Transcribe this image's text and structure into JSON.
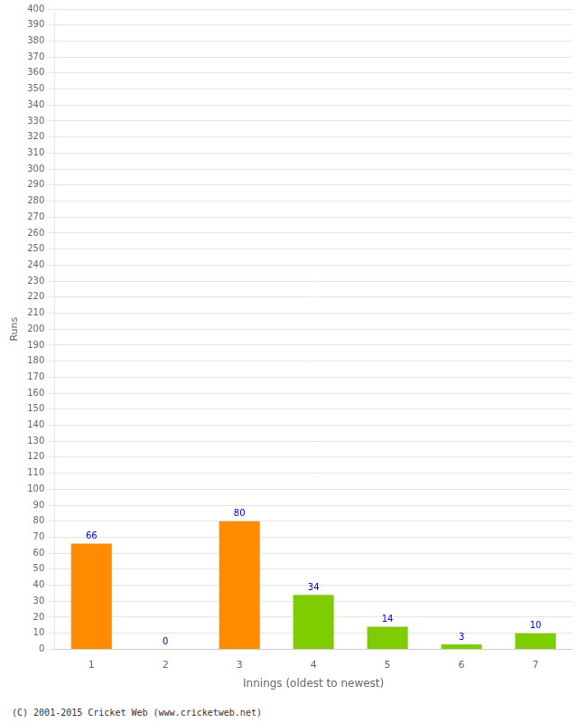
{
  "chart_data": {
    "type": "bar",
    "categories": [
      "1",
      "2",
      "3",
      "4",
      "5",
      "6",
      "7"
    ],
    "values": [
      66,
      0,
      80,
      34,
      14,
      3,
      10
    ],
    "colors": [
      "#FF8C00",
      "#FF8C00",
      "#FF8C00",
      "#7FCC00",
      "#7FCC00",
      "#7FCC00",
      "#7FCC00"
    ],
    "xlabel": "Innings (oldest to newest)",
    "ylabel": "Runs",
    "ylim": [
      0,
      400
    ],
    "yticks": [
      0,
      10,
      20,
      30,
      40,
      50,
      60,
      70,
      80,
      90,
      100,
      110,
      120,
      130,
      140,
      150,
      160,
      170,
      180,
      190,
      200,
      210,
      220,
      230,
      240,
      250,
      260,
      270,
      280,
      290,
      300,
      310,
      320,
      330,
      340,
      350,
      360,
      370,
      380,
      390,
      400
    ],
    "grid": true,
    "data_labels": true,
    "annotations": [
      "(C) 2001-2015 Cricket Web (www.cricketweb.net)"
    ]
  }
}
